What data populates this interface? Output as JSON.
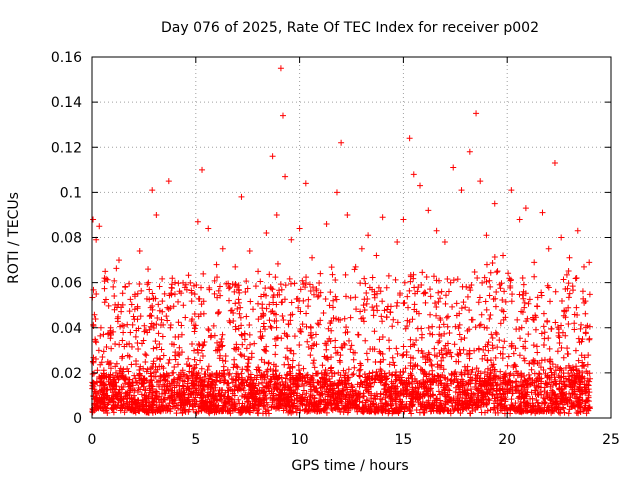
{
  "chart_data": {
    "type": "scatter",
    "title": "Day 076 of 2025, Rate Of TEC Index for receiver p002",
    "xlabel": "GPS time / hours",
    "ylabel": "ROTI / TECUs",
    "xlim": [
      0,
      25
    ],
    "ylim": [
      0,
      0.16
    ],
    "xticks": [
      0,
      5,
      10,
      15,
      20,
      25
    ],
    "yticks": [
      0,
      0.02,
      0.04,
      0.06,
      0.08,
      0.1,
      0.12,
      0.14,
      0.16
    ],
    "xtick_labels": [
      "0",
      "5",
      "10",
      "15",
      "20",
      "25"
    ],
    "ytick_labels": [
      "0",
      "0.02",
      "0.04",
      "0.06",
      "0.08",
      "0.1",
      "0.12",
      "0.14",
      "0.16"
    ],
    "grid": true,
    "marker": "+",
    "marker_color": "#ff0000",
    "series": [
      {
        "x": [
          0.05,
          0.2,
          0.35,
          0.6,
          0.9,
          1.3,
          1.6,
          2.0,
          2.3,
          2.7,
          2.9,
          3.1,
          3.5,
          3.7,
          4.0,
          4.4,
          4.8,
          5.1,
          5.3,
          5.6,
          6.0,
          6.3,
          6.6,
          6.9,
          7.2,
          7.6,
          8.0,
          8.4,
          8.7,
          8.9,
          9.1,
          9.2,
          9.3,
          9.6,
          10.0,
          10.3,
          10.6,
          11.0,
          11.3,
          11.8,
          12.0,
          12.3,
          12.7,
          13.0,
          13.3,
          13.7,
          14.0,
          14.3,
          14.7,
          15.0,
          15.3,
          15.5,
          15.8,
          16.2,
          16.6,
          17.0,
          17.4,
          17.8,
          18.2,
          18.5,
          18.7,
          19.0,
          19.4,
          19.8,
          20.2,
          20.6,
          20.9,
          21.3,
          21.7,
          22.0,
          22.3,
          22.6,
          23.0,
          23.4,
          23.7,
          23.95
        ],
        "y": [
          0.088,
          0.079,
          0.085,
          0.062,
          0.04,
          0.07,
          0.058,
          0.045,
          0.074,
          0.066,
          0.101,
          0.09,
          0.055,
          0.105,
          0.06,
          0.05,
          0.043,
          0.087,
          0.11,
          0.084,
          0.068,
          0.075,
          0.052,
          0.067,
          0.098,
          0.074,
          0.065,
          0.082,
          0.116,
          0.09,
          0.155,
          0.134,
          0.107,
          0.079,
          0.084,
          0.104,
          0.071,
          0.064,
          0.086,
          0.1,
          0.122,
          0.09,
          0.067,
          0.075,
          0.081,
          0.072,
          0.089,
          0.063,
          0.078,
          0.088,
          0.124,
          0.108,
          0.103,
          0.092,
          0.083,
          0.078,
          0.111,
          0.101,
          0.118,
          0.135,
          0.105,
          0.081,
          0.095,
          0.072,
          0.101,
          0.088,
          0.093,
          0.069,
          0.091,
          0.075,
          0.113,
          0.08,
          0.071,
          0.083,
          0.067,
          0.069
        ]
      }
    ]
  }
}
